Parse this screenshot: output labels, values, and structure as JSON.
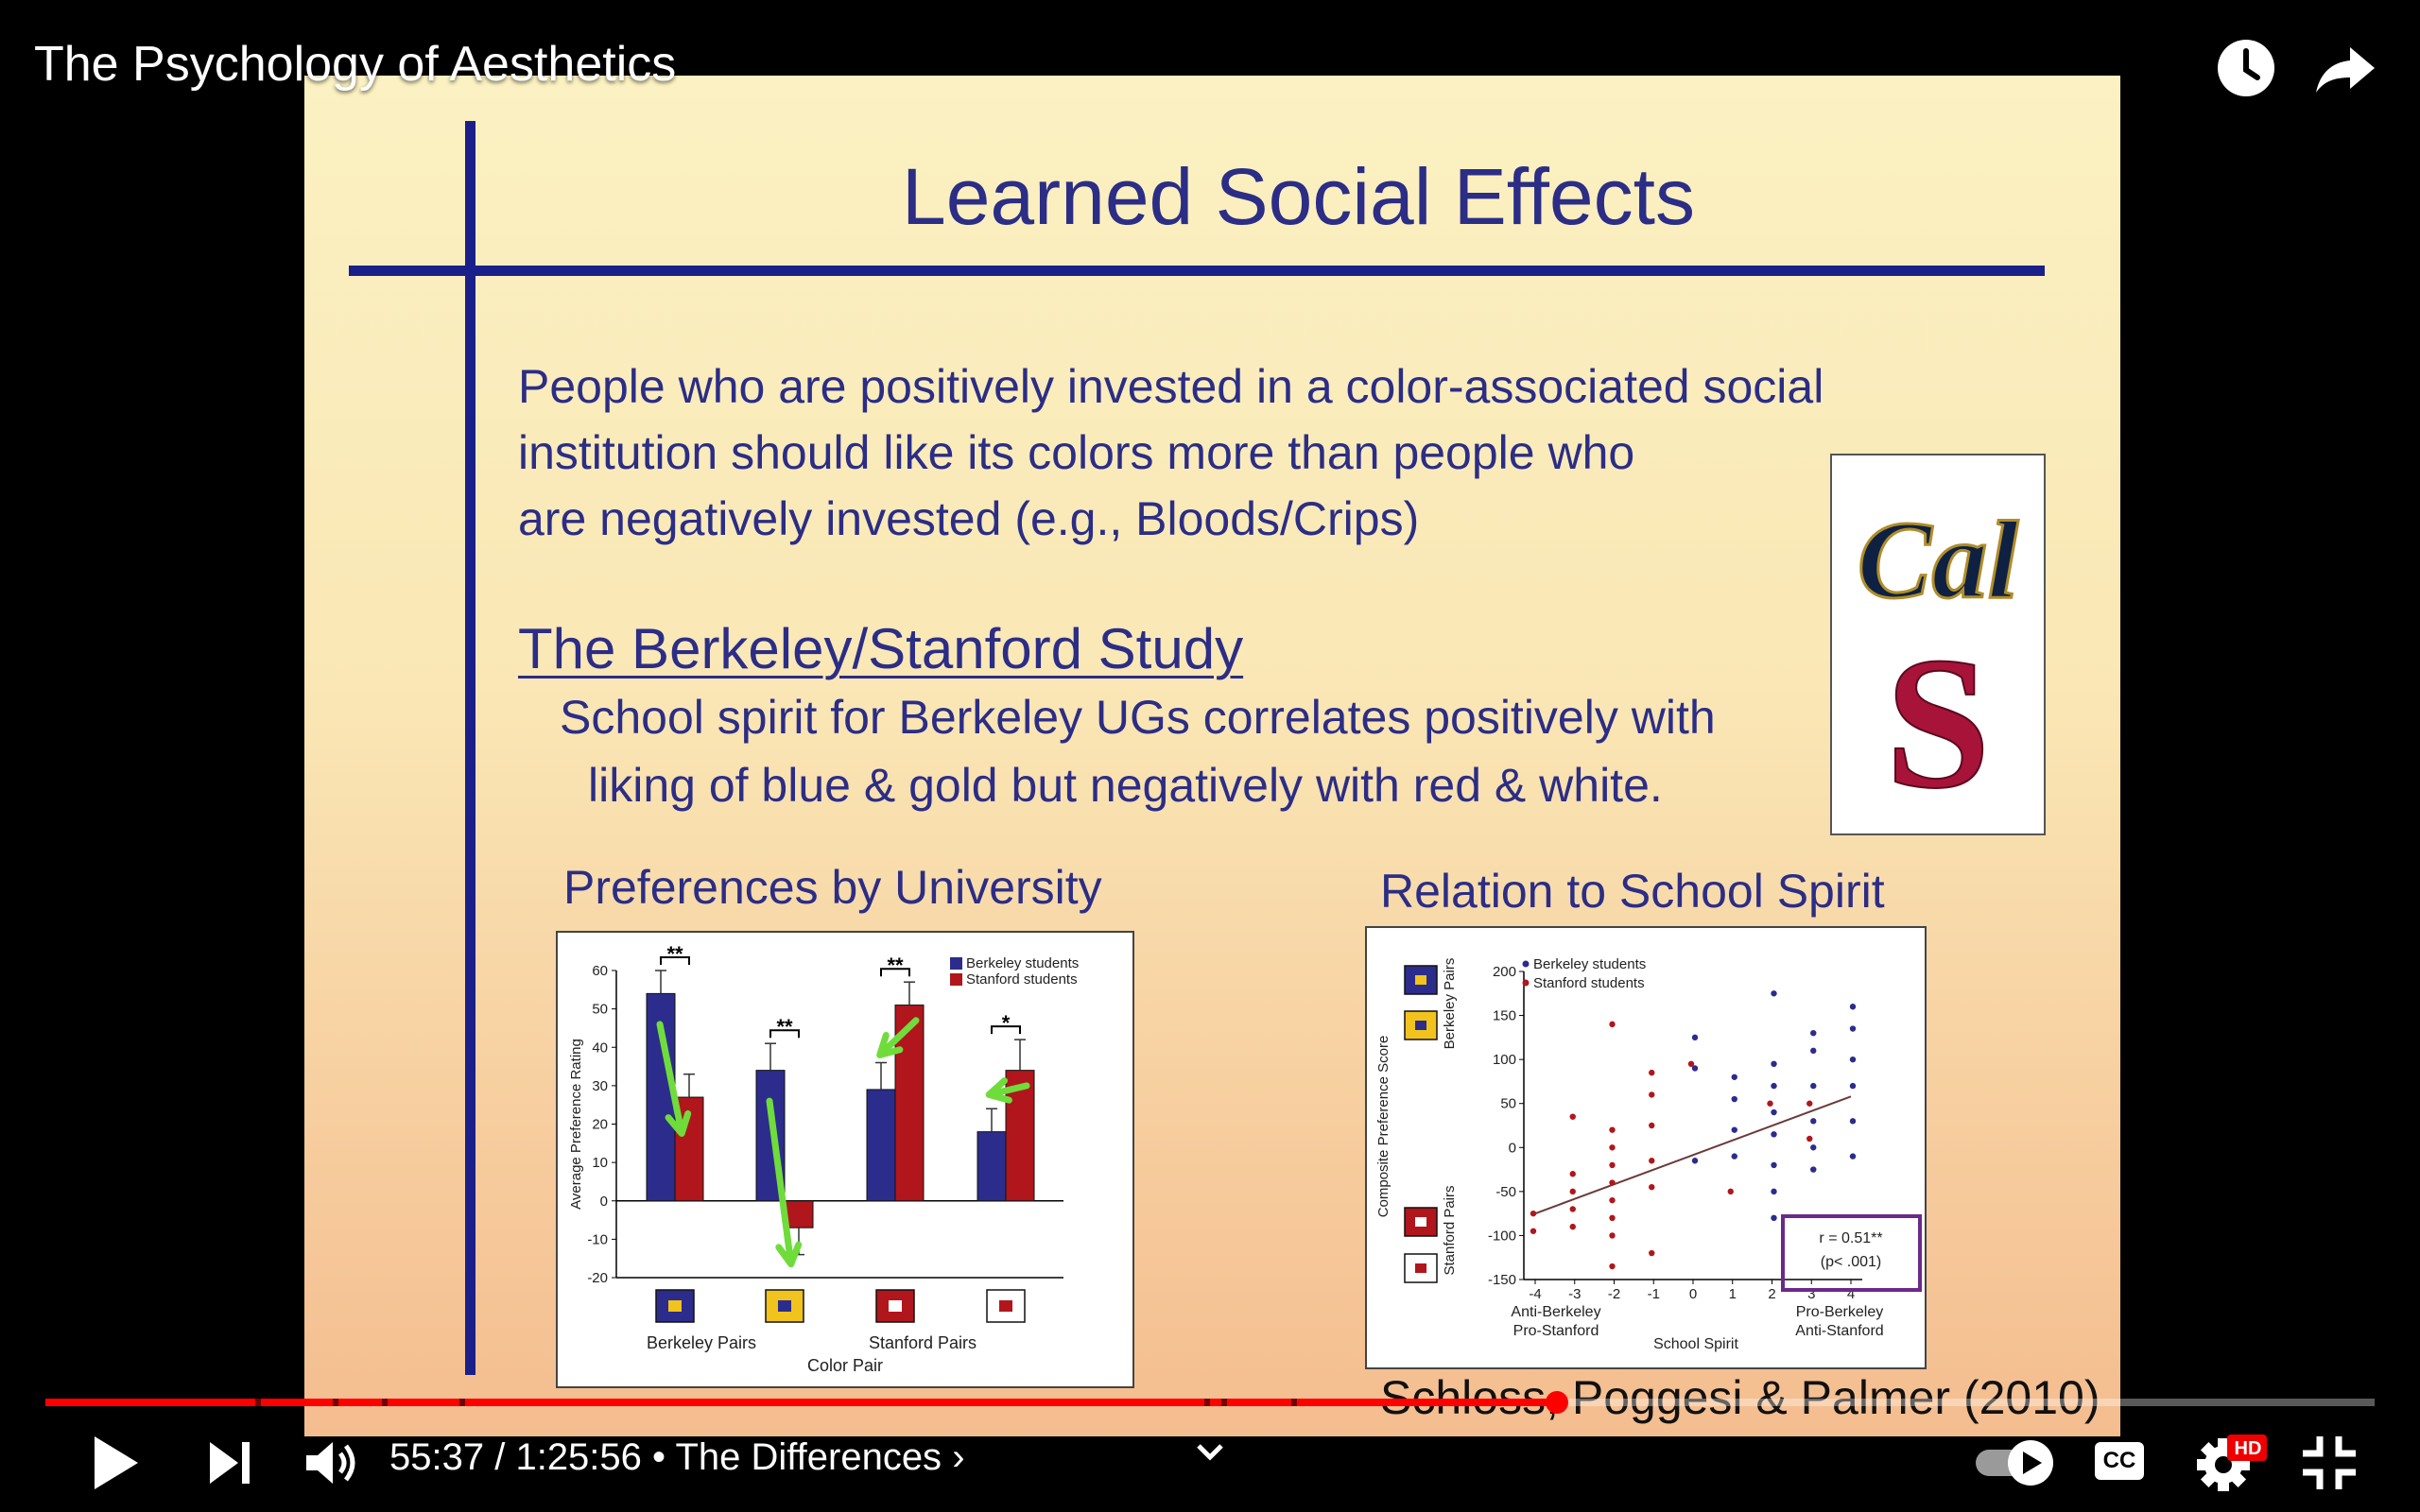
{
  "video": {
    "title": "The Psychology of Aesthetics",
    "progress_fraction": 0.649
  },
  "controls": {
    "time_current": "55:37",
    "time_separator": " / ",
    "time_total": "1:25:56",
    "chapter_prefix": " • ",
    "chapter_title": "The Differences",
    "chapter_chevron": "›",
    "hd_badge": "HD",
    "cc_label": "CC"
  },
  "slide": {
    "title": "Learned Social Effects",
    "paragraph_lines": [
      "People who are positively invested in a color-associated social",
      "institution should like its colors more than people who",
      "are negatively invested (e.g., Bloods/Crips)"
    ],
    "study_heading": "The Berkeley/Stanford Study",
    "study_lines": [
      "School spirit for Berkeley UGs correlates positively with",
      "liking of blue & gold but negatively with red & white."
    ],
    "logo_cal_text": "Cal",
    "logo_stanford_text": "S",
    "citation": "Schloss, Poggesi & Palmer (2010)",
    "colors": {
      "title_blue": "#2b2d86",
      "berkeley_blue": "#2c2c8c",
      "stanford_red": "#b0161c",
      "gold": "#f2c31c"
    }
  },
  "charts": [
    {
      "heading": "Preferences by University",
      "type": "bar",
      "categories": [
        "Berkeley blue/gold",
        "Berkeley gold/blue",
        "Stanford red/white",
        "Stanford white/red"
      ],
      "series": [
        {
          "name": "Berkeley students",
          "color": "#2c2c8c",
          "values": [
            54,
            34,
            29,
            18
          ],
          "errors": [
            6,
            7,
            7,
            6
          ]
        },
        {
          "name": "Stanford students",
          "color": "#b0161c",
          "values": [
            27,
            -7,
            51,
            34
          ],
          "errors": [
            6,
            7,
            6,
            8
          ]
        }
      ],
      "ylabel": "Average Preference Rating",
      "yticks": [
        "60",
        "50",
        "40",
        "30",
        "20",
        "10",
        "0",
        "-10",
        "-20"
      ],
      "ylim": [
        -20,
        60
      ],
      "significance": [
        "**",
        "**",
        "**",
        "*"
      ],
      "group_labels": [
        "Berkeley Pairs",
        "Stanford Pairs"
      ],
      "xlabel": "Color Pair"
    },
    {
      "heading": "Relation to School Spirit",
      "type": "scatter",
      "series_names": [
        "Berkeley students",
        "Stanford students"
      ],
      "ylabel": "Composite Preference Score",
      "ylabel_top": "Berkeley Pairs",
      "ylabel_bottom": "Stanford Pairs",
      "yticks": [
        "200",
        "150",
        "100",
        "50",
        "0",
        "-50",
        "-100",
        "-150"
      ],
      "xticks": [
        "-4",
        "-3",
        "-2",
        "-1",
        "0",
        "1",
        "2",
        "3",
        "4"
      ],
      "xlabel": "School Spirit",
      "x_left_label_1": "Anti-Berkeley",
      "x_left_label_2": "Pro-Stanford",
      "x_right_label_1": "Pro-Berkeley",
      "x_right_label_2": "Anti-Stanford",
      "stat_r": "r = 0.51**",
      "stat_p": "(p< .001)",
      "fit_line": {
        "x": [
          -4,
          4
        ],
        "y": [
          -75,
          58
        ]
      }
    }
  ],
  "chart_data": [
    {
      "type": "bar",
      "title": "Preferences by University",
      "categories": [
        "Berkeley blue/gold",
        "Berkeley gold/blue",
        "Stanford red/white",
        "Stanford white/red"
      ],
      "series": [
        {
          "name": "Berkeley students",
          "values": [
            54,
            34,
            29,
            18
          ]
        },
        {
          "name": "Stanford students",
          "values": [
            27,
            -7,
            51,
            34
          ]
        }
      ],
      "xlabel": "Color Pair",
      "ylabel": "Average Preference Rating",
      "ylim": [
        -20,
        60
      ]
    },
    {
      "type": "scatter",
      "title": "Relation to School Spirit",
      "xlabel": "School Spirit",
      "ylabel": "Composite Preference Score",
      "xlim": [
        -4,
        4
      ],
      "ylim": [
        -150,
        200
      ],
      "series": [
        {
          "name": "Berkeley students",
          "points": [
            [
              0,
              125
            ],
            [
              0,
              90
            ],
            [
              0,
              -15
            ],
            [
              1,
              80
            ],
            [
              1,
              55
            ],
            [
              1,
              20
            ],
            [
              1,
              -10
            ],
            [
              2,
              175
            ],
            [
              2,
              95
            ],
            [
              2,
              70
            ],
            [
              2,
              40
            ],
            [
              2,
              15
            ],
            [
              2,
              -20
            ],
            [
              2,
              -50
            ],
            [
              2,
              -80
            ],
            [
              3,
              130
            ],
            [
              3,
              110
            ],
            [
              3,
              70
            ],
            [
              3,
              30
            ],
            [
              3,
              0
            ],
            [
              3,
              -25
            ],
            [
              4,
              160
            ],
            [
              4,
              135
            ],
            [
              4,
              100
            ],
            [
              4,
              70
            ],
            [
              4,
              30
            ],
            [
              4,
              -10
            ]
          ]
        },
        {
          "name": "Stanford students",
          "points": [
            [
              -4,
              -75
            ],
            [
              -4,
              -95
            ],
            [
              -3,
              35
            ],
            [
              -3,
              -30
            ],
            [
              -3,
              -50
            ],
            [
              -3,
              -70
            ],
            [
              -3,
              -90
            ],
            [
              -2,
              140
            ],
            [
              -2,
              20
            ],
            [
              -2,
              0
            ],
            [
              -2,
              -20
            ],
            [
              -2,
              -40
            ],
            [
              -2,
              -60
            ],
            [
              -2,
              -80
            ],
            [
              -2,
              -100
            ],
            [
              -2,
              -135
            ],
            [
              -1,
              85
            ],
            [
              -1,
              60
            ],
            [
              -1,
              25
            ],
            [
              -1,
              -15
            ],
            [
              -1,
              -45
            ],
            [
              -1,
              -120
            ],
            [
              0,
              95
            ],
            [
              1,
              -50
            ],
            [
              2,
              50
            ],
            [
              3,
              50
            ],
            [
              3,
              10
            ]
          ]
        }
      ],
      "annotation": "r = 0.51** (p< .001)"
    }
  ]
}
